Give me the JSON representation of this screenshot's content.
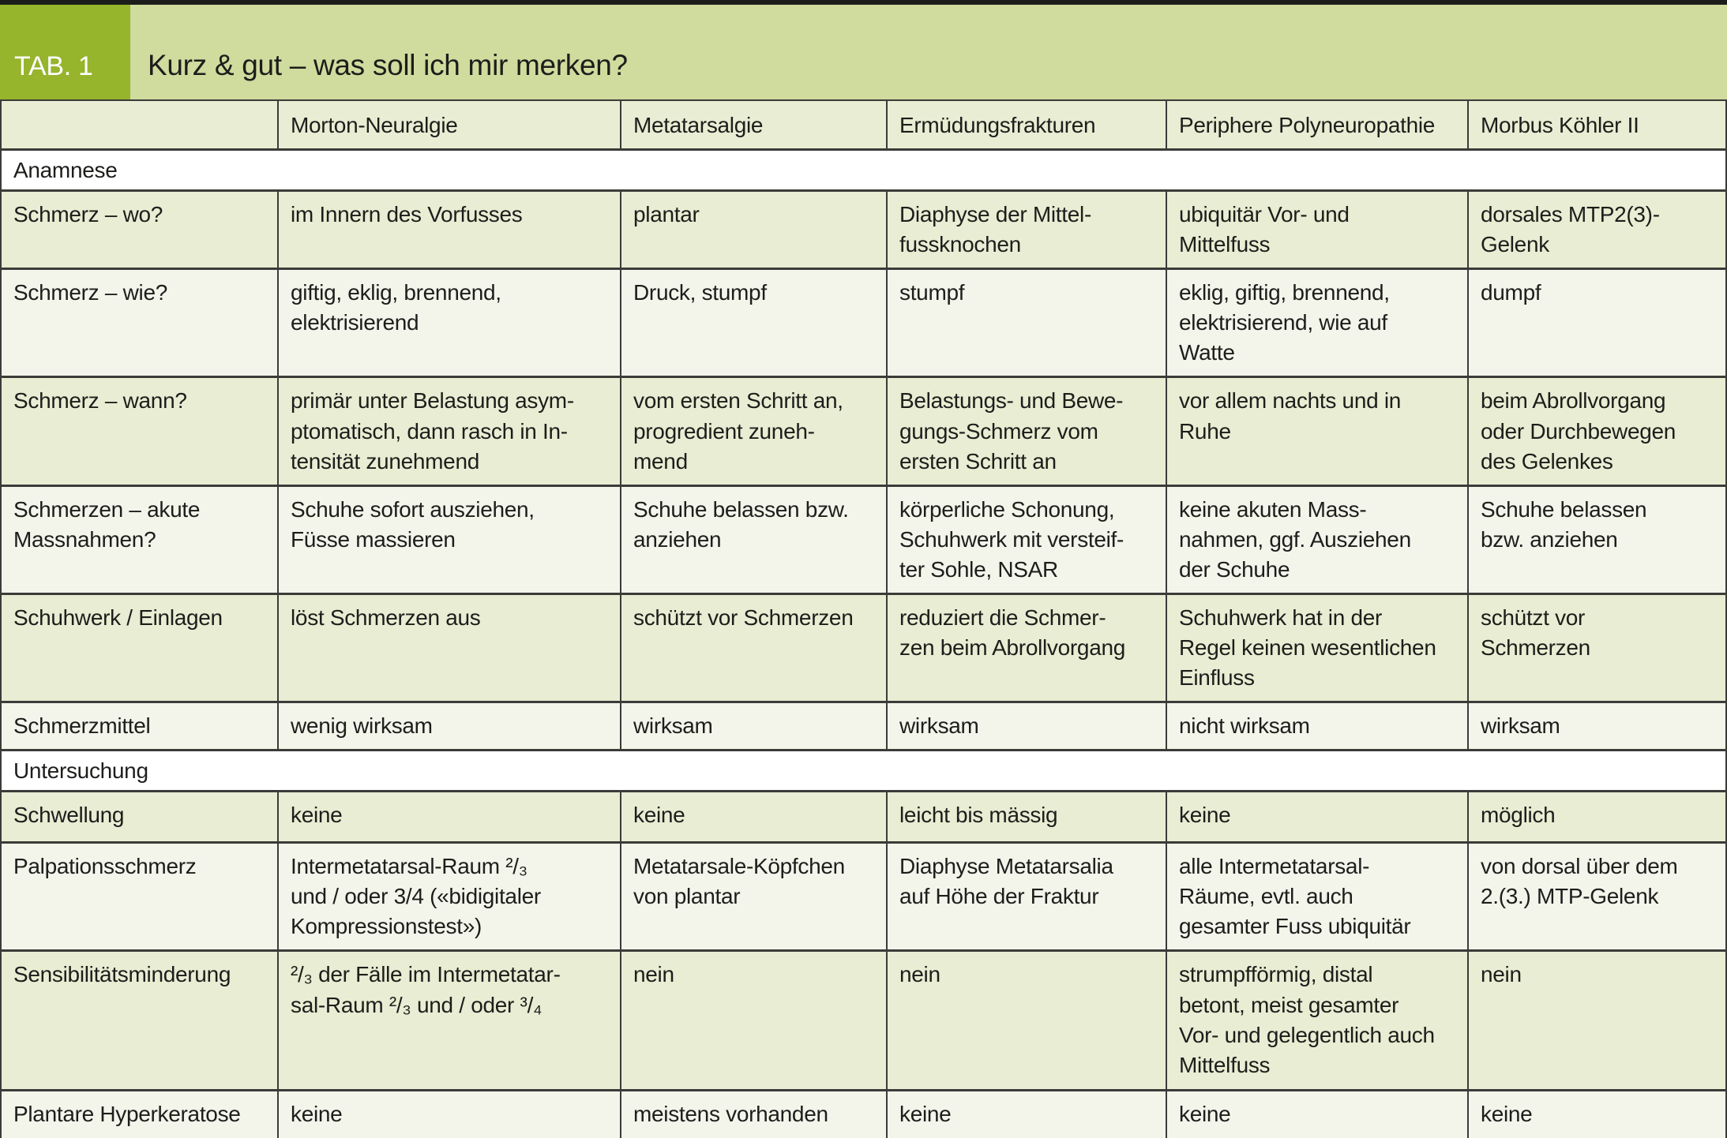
{
  "header": {
    "tab_label": "TAB. 1",
    "title": "Kurz & gut – was soll ich mir merken?"
  },
  "colors": {
    "tab_box_green": "#96b42c",
    "title_band_green": "#d0db9e",
    "row_green": "#e8edd3",
    "row_light": "#f3f4ea",
    "border_dark": "#3b3b39",
    "text": "#1d1d1b"
  },
  "table": {
    "columns": [
      "",
      "Morton-Neuralgie",
      "Metatarsalgie",
      "Ermüdungsfrakturen",
      "Periphere Polyneuropathie",
      "Morbus Köhler II"
    ],
    "sections": [
      {
        "title": "Anamnese",
        "rows": [
          {
            "label": "Schmerz – wo?",
            "cells": [
              "im Innern des Vorfusses",
              "plantar",
              "Diaphyse der Mittel-\nfussknochen",
              "ubiquitär Vor- und\nMittelfuss",
              "dorsales MTP2(3)-\nGelenk"
            ]
          },
          {
            "label": "Schmerz – wie?",
            "cells": [
              "giftig, eklig, brennend,\nelektrisierend",
              "Druck, stumpf",
              "stumpf",
              "eklig, giftig, brennend,\nelektrisierend, wie auf\nWatte",
              "dumpf"
            ]
          },
          {
            "label": "Schmerz – wann?",
            "cells": [
              "primär unter Belastung asym-\nptomatisch, dann rasch in In-\ntensität zunehmend",
              "vom ersten Schritt an,\nprogredient zuneh-\nmend",
              "Belastungs- und Bewe-\ngungs-Schmerz vom\nersten Schritt an",
              "vor allem nachts und in\nRuhe",
              "beim Abrollvorgang\noder Durchbewegen\ndes Gelenkes"
            ]
          },
          {
            "label": "Schmerzen – akute\nMassnahmen?",
            "cells": [
              "Schuhe sofort ausziehen,\nFüsse massieren",
              "Schuhe belassen bzw.\nanziehen",
              "körperliche Schonung,\nSchuhwerk mit versteif-\nter Sohle, NSAR",
              "keine akuten Mass-\nnahmen, ggf. Ausziehen\nder Schuhe",
              "Schuhe belassen\nbzw. anziehen"
            ]
          },
          {
            "label": "Schuhwerk / Einlagen",
            "cells": [
              "löst Schmerzen aus",
              "schützt vor Schmerzen",
              "reduziert die Schmer-\nzen beim Abrollvorgang",
              "Schuhwerk hat in der\nRegel keinen wesentlichen\nEinfluss",
              "schützt vor\nSchmerzen"
            ]
          },
          {
            "label": "Schmerzmittel",
            "cells": [
              "wenig wirksam",
              "wirksam",
              "wirksam",
              "nicht wirksam",
              "wirksam"
            ]
          }
        ]
      },
      {
        "title": "Untersuchung",
        "rows": [
          {
            "label": "Schwellung",
            "cells": [
              "keine",
              "keine",
              "leicht bis mässig",
              "keine",
              "möglich"
            ]
          },
          {
            "label": "Palpationsschmerz",
            "cells": [
              "Intermetatarsal-Raum ²/₃\nund / oder 3/4 («bidigitaler\nKompressionstest»)",
              "Metatarsale-Köpfchen\nvon plantar",
              "Diaphyse Metatarsalia\nauf Höhe der Fraktur",
              "alle Intermetatarsal-\nRäume, evtl. auch\ngesamter Fuss ubiquitär",
              "von dorsal über dem\n2.(3.) MTP-Gelenk"
            ]
          },
          {
            "label": "Sensibilitätsminderung",
            "cells": [
              "²/₃ der Fälle im Intermetatar-\nsal-Raum ²/₃ und / oder ³/₄",
              "nein",
              "nein",
              "strumpfförmig, distal\nbetont, meist gesamter\nVor- und gelegentlich auch\nMittelfuss",
              "nein"
            ]
          },
          {
            "label": "Plantare Hyperkeratose",
            "cells": [
              "keine",
              "meistens vorhanden",
              "keine",
              "keine",
              "keine"
            ]
          }
        ]
      }
    ]
  }
}
